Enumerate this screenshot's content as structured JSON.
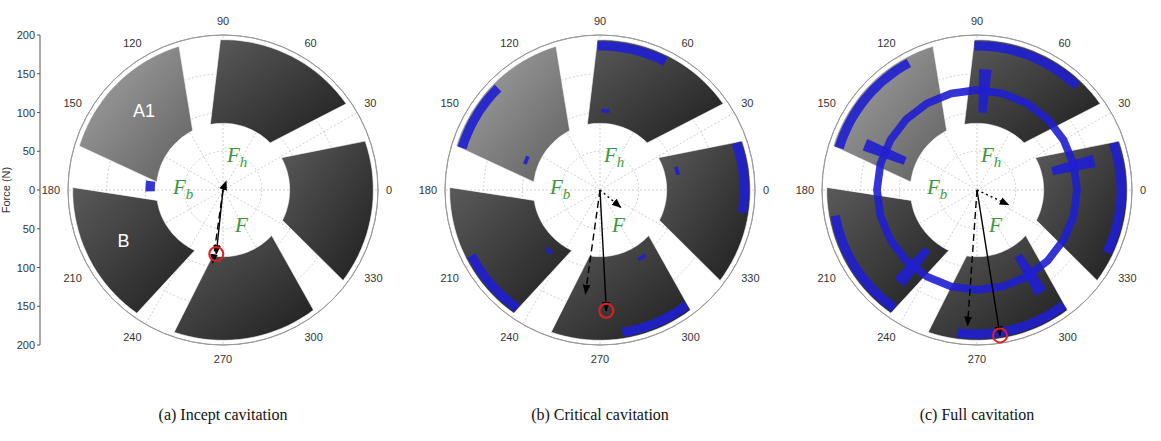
{
  "chart_data": [
    {
      "type": "polar",
      "title": "(a) Incept cavitation",
      "y_label": "Force (N)",
      "xlim": [
        0,
        360
      ],
      "xticks": [
        0,
        30,
        60,
        90,
        120,
        150,
        180,
        210,
        240,
        270,
        300,
        330
      ],
      "ylim": [
        0,
        200
      ],
      "yticks": [
        0,
        50,
        100,
        150,
        200
      ],
      "grid": true,
      "tick_labels": true,
      "annotations": [
        "A1",
        "B"
      ],
      "vectors": [
        {
          "symbol": "F",
          "subscript": "h",
          "magnitude": 12,
          "angle": 70,
          "line_style": "dotted",
          "color": "#000000"
        },
        {
          "symbol": "F",
          "subscript": "b",
          "magnitude": 95,
          "angle": 262,
          "line_style": "dashed",
          "color": "#000000"
        },
        {
          "symbol": "F",
          "subscript": "",
          "magnitude": 83,
          "angle": 264,
          "line_style": "solid",
          "color": "#000000",
          "marker": "circle"
        }
      ]
    },
    {
      "type": "polar",
      "title": "(b) Critical cavitation",
      "xlim": [
        0,
        360
      ],
      "xticks": [
        0,
        30,
        60,
        90,
        120,
        150,
        180,
        210,
        240,
        270,
        300,
        330
      ],
      "ylim": [
        0,
        200
      ],
      "yticks": [
        0,
        50,
        100,
        150,
        200
      ],
      "grid": true,
      "tick_labels": "x",
      "vectors": [
        {
          "symbol": "F",
          "subscript": "h",
          "magnitude": 35,
          "angle": 320,
          "line_style": "dotted",
          "color": "#000000"
        },
        {
          "symbol": "F",
          "subscript": "b",
          "magnitude": 135,
          "angle": 262,
          "line_style": "dashed",
          "color": "#000000"
        },
        {
          "symbol": "F",
          "subscript": "",
          "magnitude": 156,
          "angle": 273,
          "line_style": "solid",
          "color": "#000000",
          "marker": "circle"
        }
      ]
    },
    {
      "type": "polar",
      "title": "(c) Full cavitation",
      "xlim": [
        0,
        360
      ],
      "xticks": [
        0,
        30,
        60,
        90,
        120,
        150,
        180,
        210,
        240,
        270,
        300,
        330
      ],
      "ylim": [
        0,
        200
      ],
      "yticks": [
        0,
        50,
        100,
        150,
        200
      ],
      "grid": true,
      "tick_labels": "x",
      "vectors": [
        {
          "symbol": "F",
          "subscript": "h",
          "magnitude": 45,
          "angle": 335,
          "line_style": "dotted",
          "color": "#000000"
        },
        {
          "symbol": "F",
          "subscript": "b",
          "magnitude": 175,
          "angle": 266,
          "line_style": "dashed",
          "color": "#000000"
        },
        {
          "symbol": "F",
          "subscript": "",
          "magnitude": 190,
          "angle": 279,
          "line_style": "solid",
          "color": "#000000",
          "marker": "circle"
        }
      ]
    }
  ]
}
